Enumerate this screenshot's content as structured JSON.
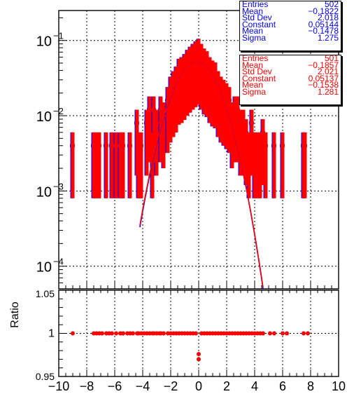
{
  "chart_data": {
    "type": "scatter",
    "top_panel": {
      "yscale": "log",
      "ylim": [
        5e-05,
        0.25
      ],
      "ytick_labels": [
        "10^{-4}",
        "10^{-3}",
        "10^{-2}",
        "10^{-1}"
      ],
      "grid": true,
      "series": [
        {
          "color": "#0000ff",
          "x": [
            -9,
            -7.5,
            -7.3,
            -7.1,
            -6.6,
            -6.2,
            -5.9,
            -5.6,
            -5.4,
            -4.9,
            -4.4,
            -4.3,
            -4.1,
            -3.7,
            -3.5,
            -3.3,
            -3.2,
            -3.0,
            -2.7,
            -2.5,
            -2.2,
            -2.0,
            -1.8,
            -1.6,
            -1.4,
            -1.2,
            -1.0,
            -0.8,
            -0.6,
            -0.4,
            -0.2,
            0.0,
            0.2,
            0.4,
            0.6,
            0.8,
            1.0,
            1.2,
            1.4,
            1.6,
            1.8,
            2.0,
            2.2,
            2.4,
            2.6,
            2.8,
            3.0,
            3.2,
            3.4,
            3.6,
            3.8,
            4.0,
            4.2,
            4.4,
            4.6,
            4.8,
            5.4,
            6.0,
            7.5,
            7.6
          ],
          "y": [
            0.004,
            0.004,
            0.004,
            0.004,
            0.004,
            0.004,
            0.004,
            0.004,
            0.004,
            0.004,
            0.008,
            0.004,
            0.004,
            0.008,
            0.012,
            0.004,
            0.012,
            0.008,
            0.012,
            0.01,
            0.016,
            0.022,
            0.026,
            0.03,
            0.038,
            0.04,
            0.044,
            0.05,
            0.055,
            0.06,
            0.065,
            0.07,
            0.06,
            0.052,
            0.048,
            0.04,
            0.036,
            0.034,
            0.026,
            0.022,
            0.02,
            0.018,
            0.016,
            0.01,
            0.012,
            0.012,
            0.008,
            0.008,
            0.006,
            0.004,
            0.008,
            0.004,
            0.004,
            0.004,
            0.006,
            0.004,
            0.004,
            0.004,
            0.004,
            0.004
          ]
        },
        {
          "color": "#ff0000",
          "x": [
            -9,
            -7.5,
            -7.3,
            -7.1,
            -6.6,
            -6.2,
            -5.9,
            -5.6,
            -5.4,
            -4.9,
            -4.4,
            -4.3,
            -4.1,
            -3.7,
            -3.5,
            -3.3,
            -3.2,
            -3.0,
            -2.7,
            -2.5,
            -2.2,
            -2.0,
            -1.8,
            -1.6,
            -1.4,
            -1.2,
            -1.0,
            -0.8,
            -0.6,
            -0.4,
            -0.2,
            0.0,
            0.2,
            0.4,
            0.6,
            0.8,
            1.0,
            1.2,
            1.4,
            1.6,
            1.8,
            2.0,
            2.2,
            2.4,
            2.6,
            2.8,
            3.0,
            3.2,
            3.4,
            3.6,
            3.8,
            4.0,
            4.2,
            4.4,
            4.6,
            4.8,
            5.4,
            6.0,
            7.5,
            7.6
          ],
          "y": [
            0.004,
            0.004,
            0.004,
            0.004,
            0.004,
            0.004,
            0.004,
            0.004,
            0.004,
            0.004,
            0.008,
            0.004,
            0.004,
            0.008,
            0.012,
            0.004,
            0.012,
            0.008,
            0.012,
            0.01,
            0.016,
            0.022,
            0.026,
            0.03,
            0.038,
            0.04,
            0.044,
            0.05,
            0.055,
            0.06,
            0.065,
            0.07,
            0.06,
            0.052,
            0.048,
            0.04,
            0.036,
            0.034,
            0.026,
            0.022,
            0.02,
            0.018,
            0.016,
            0.01,
            0.012,
            0.012,
            0.008,
            0.008,
            0.006,
            0.004,
            0.008,
            0.004,
            0.004,
            0.004,
            0.006,
            0.004,
            0.004,
            0.004,
            0.004,
            0.004
          ]
        }
      ],
      "fits": [
        {
          "color": "#0000ff",
          "constant": 0.05144,
          "mean": -0.1478,
          "sigma": 1.275
        },
        {
          "color": "#ff0000",
          "constant": 0.05137,
          "mean": -0.1538,
          "sigma": 1.281
        }
      ]
    },
    "bottom_panel": {
      "ylabel": "Ratio",
      "ylim": [
        0.95,
        1.05
      ],
      "ytick_labels": [
        "0.95",
        "1",
        "1.05"
      ],
      "grid": true,
      "points": {
        "color": "#ff0000",
        "x": [
          -9,
          -7.5,
          -7.3,
          -7.1,
          -6.9,
          -6.6,
          -6.4,
          -6.2,
          -5.9,
          -5.6,
          -5.4,
          -5.1,
          -4.9,
          -4.7,
          -4.4,
          -4.3,
          -4.1,
          -3.9,
          -3.7,
          -3.5,
          -3.3,
          -3.2,
          -3.0,
          -2.8,
          -2.7,
          -2.5,
          -2.2,
          -2.0,
          -1.8,
          -1.6,
          -1.4,
          -1.2,
          -1.0,
          -0.8,
          -0.6,
          -0.4,
          -0.2,
          0.0,
          0.0,
          0.2,
          0.4,
          0.6,
          0.8,
          1.0,
          1.2,
          1.4,
          1.6,
          1.8,
          2.0,
          2.2,
          2.4,
          2.6,
          2.8,
          3.0,
          3.2,
          3.4,
          3.6,
          3.8,
          4.0,
          4.2,
          4.4,
          4.6,
          5.1,
          5.4,
          6.0,
          6.3,
          7.5,
          7.8
        ],
        "y": [
          1.0,
          1.0,
          1.0,
          1.0,
          1.0,
          1.0,
          1.0,
          1.0,
          1.0,
          1.0,
          1.0,
          1.0,
          1.0,
          1.0,
          1.0,
          1.0,
          1.0,
          1.0,
          1.0,
          1.0,
          1.0,
          1.0,
          1.0,
          1.0,
          1.0,
          1.0,
          1.0,
          1.0,
          1.0,
          1.0,
          1.0,
          1.0,
          1.0,
          1.0,
          1.0,
          1.0,
          1.0,
          0.976,
          0.97,
          1.0,
          1.0,
          1.0,
          1.0,
          1.0,
          1.0,
          1.0,
          1.0,
          1.0,
          1.0,
          1.0,
          1.0,
          1.0,
          1.0,
          1.0,
          1.0,
          1.0,
          1.0,
          1.0,
          1.0,
          1.0,
          1.0,
          1.0,
          1.0,
          1.0,
          1.0,
          1.0,
          1.0,
          1.0
        ]
      }
    },
    "xlim": [
      -10,
      10
    ],
    "xtick_labels": [
      "−10",
      "−8",
      "−6",
      "−4",
      "−2",
      "0",
      "2",
      "4",
      "6",
      "8",
      "10"
    ]
  },
  "stats_blue": {
    "rows": [
      {
        "key": "Entries",
        "value": "502"
      },
      {
        "key": "Mean",
        "value": "−0.1822"
      },
      {
        "key": "Std Dev",
        "value": "2.018"
      },
      {
        "key": "Constant",
        "value": "0.05144"
      },
      {
        "key": "Mean",
        "value": "−0.1478"
      },
      {
        "key": "Sigma",
        "value": "1.275"
      }
    ]
  },
  "stats_red": {
    "rows": [
      {
        "key": "Entries",
        "value": "501"
      },
      {
        "key": "Mean",
        "value": "−0.1857"
      },
      {
        "key": "Std Dev",
        "value": "2.021"
      },
      {
        "key": "Constant",
        "value": "0.05137"
      },
      {
        "key": "Mean",
        "value": "−0.1538"
      },
      {
        "key": "Sigma",
        "value": "1.281"
      }
    ]
  }
}
